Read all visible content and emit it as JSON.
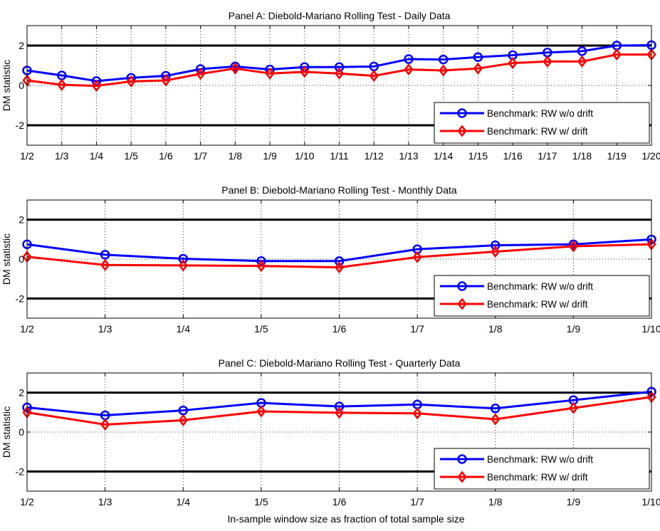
{
  "colors": {
    "series_1": "#0000ff",
    "series_2": "#ff0000",
    "threshold": "#000000",
    "grid": "#000000"
  },
  "figure": {
    "xlabel": "In-sample window size as fraction of total sample size",
    "ylabel": "DM statistic"
  },
  "chart_data": [
    {
      "type": "line",
      "title": "Panel A: Diebold-Mariano Rolling Test - Daily Data",
      "xlabel": "",
      "ylabel": "DM statistic",
      "categories": [
        "1/2",
        "1/3",
        "1/4",
        "1/5",
        "1/6",
        "1/7",
        "1/8",
        "1/9",
        "1/10",
        "1/11",
        "1/12",
        "1/13",
        "1/14",
        "1/15",
        "1/16",
        "1/17",
        "1/18",
        "1/19",
        "1/20"
      ],
      "ylim": [
        -3,
        3
      ],
      "yticks": [
        2,
        0,
        -2
      ],
      "ytick_labels": [
        "2",
        "0",
        "-2"
      ],
      "thresholds": [
        2,
        -2
      ],
      "grid": true,
      "legend_position": "bottom-right",
      "series": [
        {
          "name": "Benchmark: RW w/o drift",
          "marker": "circle",
          "values": [
            0.75,
            0.5,
            0.22,
            0.38,
            0.48,
            0.82,
            0.95,
            0.8,
            0.92,
            0.92,
            0.95,
            1.32,
            1.3,
            1.42,
            1.52,
            1.65,
            1.72,
            2.0,
            2.02
          ]
        },
        {
          "name": "Benchmark: RW w/ drift",
          "marker": "diamond",
          "values": [
            0.25,
            0.03,
            -0.02,
            0.2,
            0.25,
            0.58,
            0.85,
            0.6,
            0.68,
            0.6,
            0.48,
            0.8,
            0.75,
            0.85,
            1.12,
            1.2,
            1.2,
            1.55,
            1.55
          ]
        }
      ]
    },
    {
      "type": "line",
      "title": "Panel B: Diebold-Mariano Rolling Test - Monthly Data",
      "xlabel": "",
      "ylabel": "DM statistic",
      "categories": [
        "1/2",
        "1/3",
        "1/4",
        "1/5",
        "1/6",
        "1/7",
        "1/8",
        "1/9",
        "1/10"
      ],
      "ylim": [
        -3,
        3
      ],
      "yticks": [
        2,
        0,
        -2
      ],
      "ytick_labels": [
        "2",
        "0",
        "-2"
      ],
      "thresholds": [
        2,
        -2
      ],
      "grid": true,
      "legend_position": "bottom-right",
      "series": [
        {
          "name": "Benchmark: RW w/o drift",
          "marker": "circle",
          "values": [
            0.75,
            0.22,
            0.02,
            -0.1,
            -0.1,
            0.5,
            0.7,
            0.75,
            1.0
          ]
        },
        {
          "name": "Benchmark: RW w/ drift",
          "marker": "diamond",
          "values": [
            0.12,
            -0.3,
            -0.32,
            -0.35,
            -0.42,
            0.1,
            0.38,
            0.65,
            0.75
          ]
        }
      ]
    },
    {
      "type": "line",
      "title": "Panel C: Diebold-Mariano Rolling Test - Quarterly Data",
      "xlabel": "In-sample window size as fraction of total sample size",
      "ylabel": "DM statistic",
      "categories": [
        "1/2",
        "1/3",
        "1/4",
        "1/5",
        "1/6",
        "1/7",
        "1/8",
        "1/9",
        "1/10"
      ],
      "ylim": [
        -3,
        3
      ],
      "yticks": [
        2,
        0,
        -2
      ],
      "ytick_labels": [
        "2",
        "0",
        "-2"
      ],
      "thresholds": [
        2,
        -2
      ],
      "grid": true,
      "legend_position": "bottom-right",
      "series": [
        {
          "name": "Benchmark: RW w/o drift",
          "marker": "circle",
          "values": [
            1.25,
            0.85,
            1.1,
            1.48,
            1.3,
            1.4,
            1.2,
            1.62,
            2.05
          ]
        },
        {
          "name": "Benchmark: RW w/ drift",
          "marker": "diamond",
          "values": [
            1.0,
            0.38,
            0.6,
            1.05,
            0.98,
            0.95,
            0.65,
            1.22,
            1.78
          ]
        }
      ]
    }
  ]
}
